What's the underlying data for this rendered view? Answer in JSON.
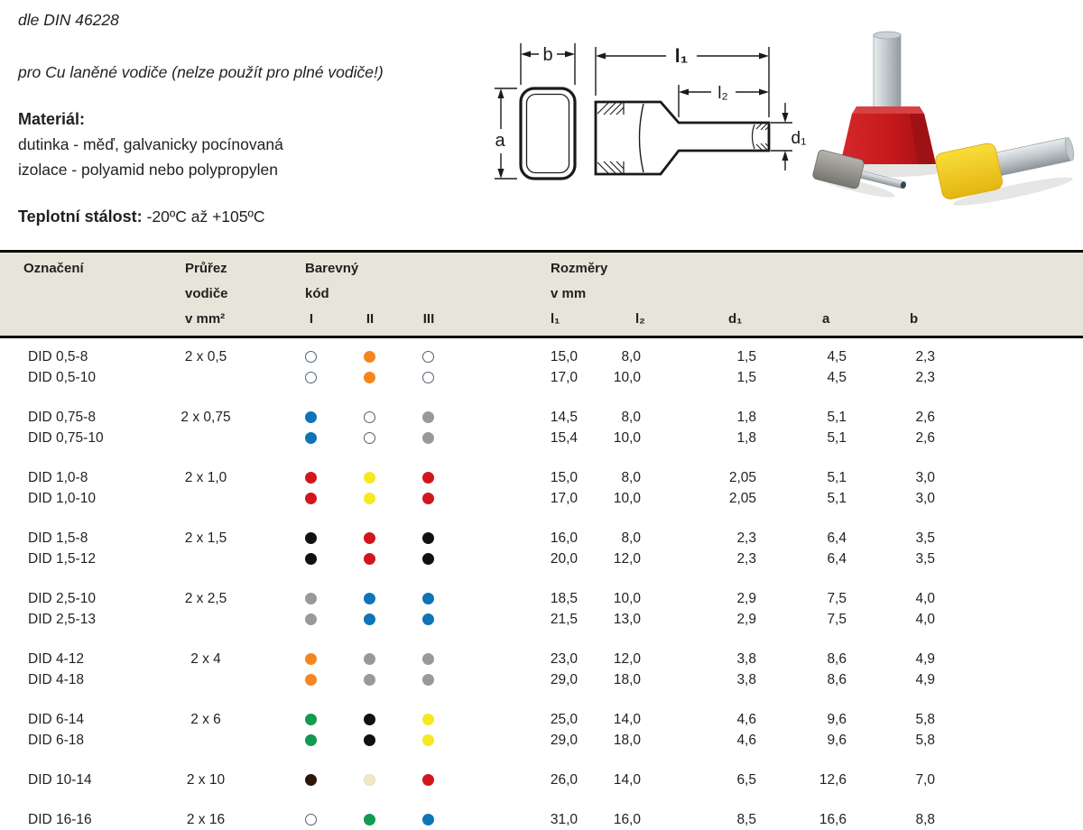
{
  "intro": {
    "norm": "dle DIN 46228",
    "usage": "pro Cu laněné vodiče (nelze použít pro plné vodiče!)",
    "material_label": "Materiál:",
    "material_line1": "dutinka - měď, galvanicky pocínovaná",
    "material_line2": "izolace - polyamid nebo polypropylen",
    "temperature_label": "Teplotní stálost:",
    "temperature_value": " -20ºC až +105ºC"
  },
  "diagram": {
    "labels": {
      "a": "a",
      "b": "b",
      "l1": "l₁",
      "l2": "l₂",
      "d1": "d₁"
    }
  },
  "table": {
    "head": {
      "designation": "Označení",
      "cross_l1": "Průřez",
      "cross_l2": "vodiče",
      "cross_l3": "v mm²",
      "color_l1": "Barevný",
      "color_l2": "kód",
      "col_I": "I",
      "col_II": "II",
      "col_III": "III",
      "dims_l1": "Rozměry",
      "dims_l2": "v mm",
      "d_l1": "l₁",
      "d_l2": "l₂",
      "d_d1": "d₁",
      "d_a": "a",
      "d_b": "b"
    },
    "palette": {
      "white": {
        "fill": "#ffffff",
        "border": "#51616f"
      },
      "orange": {
        "fill": "#f5861f",
        "border": "#f5861f"
      },
      "blue": {
        "fill": "#0f74b8",
        "border": "#0f74b8"
      },
      "grey": {
        "fill": "#999999",
        "border": "#999999"
      },
      "red": {
        "fill": "#d2161e",
        "border": "#d2161e"
      },
      "yellow": {
        "fill": "#f6e821",
        "border": "#f6e821"
      },
      "black": {
        "fill": "#111111",
        "border": "#111111"
      },
      "green": {
        "fill": "#119a50",
        "border": "#119a50"
      },
      "brown": {
        "fill": "#2f1708",
        "border": "#2f1708"
      },
      "ivory": {
        "fill": "#efe9c8",
        "border": "#e4ddbb"
      }
    },
    "groups": [
      {
        "rows": [
          {
            "name": "DID 0,5-8",
            "cross": "2 x 0,5",
            "colors": [
              "white",
              "orange",
              "white"
            ],
            "dims": [
              "15,0",
              "8,0",
              "1,5",
              "4,5",
              "2,3"
            ]
          },
          {
            "name": "DID 0,5-10",
            "cross": "",
            "colors": [
              "white",
              "orange",
              "white"
            ],
            "dims": [
              "17,0",
              "10,0",
              "1,5",
              "4,5",
              "2,3"
            ]
          }
        ]
      },
      {
        "rows": [
          {
            "name": "DID 0,75-8",
            "cross": "2 x 0,75",
            "colors": [
              "blue",
              "white",
              "grey"
            ],
            "dims": [
              "14,5",
              "8,0",
              "1,8",
              "5,1",
              "2,6"
            ]
          },
          {
            "name": "DID 0,75-10",
            "cross": "",
            "colors": [
              "blue",
              "white",
              "grey"
            ],
            "dims": [
              "15,4",
              "10,0",
              "1,8",
              "5,1",
              "2,6"
            ]
          }
        ]
      },
      {
        "rows": [
          {
            "name": "DID 1,0-8",
            "cross": "2 x 1,0",
            "colors": [
              "red",
              "yellow",
              "red"
            ],
            "dims": [
              "15,0",
              "8,0",
              "2,05",
              "5,1",
              "3,0"
            ]
          },
          {
            "name": "DID 1,0-10",
            "cross": "",
            "colors": [
              "red",
              "yellow",
              "red"
            ],
            "dims": [
              "17,0",
              "10,0",
              "2,05",
              "5,1",
              "3,0"
            ]
          }
        ]
      },
      {
        "rows": [
          {
            "name": "DID 1,5-8",
            "cross": "2 x 1,5",
            "colors": [
              "black",
              "red",
              "black"
            ],
            "dims": [
              "16,0",
              "8,0",
              "2,3",
              "6,4",
              "3,5"
            ]
          },
          {
            "name": "DID 1,5-12",
            "cross": "",
            "colors": [
              "black",
              "red",
              "black"
            ],
            "dims": [
              "20,0",
              "12,0",
              "2,3",
              "6,4",
              "3,5"
            ]
          }
        ]
      },
      {
        "rows": [
          {
            "name": "DID 2,5-10",
            "cross": "2 x 2,5",
            "colors": [
              "grey",
              "blue",
              "blue"
            ],
            "dims": [
              "18,5",
              "10,0",
              "2,9",
              "7,5",
              "4,0"
            ]
          },
          {
            "name": "DID 2,5-13",
            "cross": "",
            "colors": [
              "grey",
              "blue",
              "blue"
            ],
            "dims": [
              "21,5",
              "13,0",
              "2,9",
              "7,5",
              "4,0"
            ]
          }
        ]
      },
      {
        "rows": [
          {
            "name": "DID 4-12",
            "cross": "2 x 4",
            "colors": [
              "orange",
              "grey",
              "grey"
            ],
            "dims": [
              "23,0",
              "12,0",
              "3,8",
              "8,6",
              "4,9"
            ]
          },
          {
            "name": "DID 4-18",
            "cross": "",
            "colors": [
              "orange",
              "grey",
              "grey"
            ],
            "dims": [
              "29,0",
              "18,0",
              "3,8",
              "8,6",
              "4,9"
            ]
          }
        ]
      },
      {
        "rows": [
          {
            "name": "DID 6-14",
            "cross": "2 x 6",
            "colors": [
              "green",
              "black",
              "yellow"
            ],
            "dims": [
              "25,0",
              "14,0",
              "4,6",
              "9,6",
              "5,8"
            ]
          },
          {
            "name": "DID 6-18",
            "cross": "",
            "colors": [
              "green",
              "black",
              "yellow"
            ],
            "dims": [
              "29,0",
              "18,0",
              "4,6",
              "9,6",
              "5,8"
            ]
          }
        ]
      },
      {
        "rows": [
          {
            "name": "DID 10-14",
            "cross": "2 x 10",
            "colors": [
              "brown",
              "ivory",
              "red"
            ],
            "dims": [
              "26,0",
              "14,0",
              "6,5",
              "12,6",
              "7,0"
            ]
          }
        ]
      },
      {
        "rows": [
          {
            "name": "DID 16-16",
            "cross": "2 x 16",
            "colors": [
              "white",
              "green",
              "blue"
            ],
            "dims": [
              "31,0",
              "16,0",
              "8,5",
              "16,6",
              "8,8"
            ]
          }
        ]
      }
    ]
  }
}
